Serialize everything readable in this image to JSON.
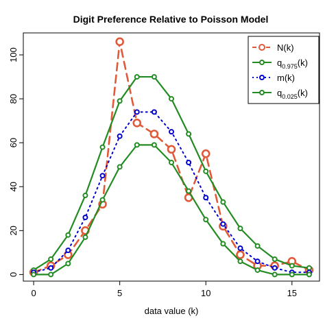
{
  "chart_data": {
    "type": "line",
    "title": "Digit Preference Relative to Poisson Model",
    "xlabel": "data value (k)",
    "ylabel": "",
    "xlim": [
      -0.6,
      16.6
    ],
    "ylim": [
      -3,
      110
    ],
    "xticks": [
      0,
      5,
      10,
      15
    ],
    "yticks": [
      0,
      20,
      40,
      60,
      80,
      100
    ],
    "x": [
      0,
      1,
      2,
      3,
      4,
      5,
      6,
      7,
      8,
      9,
      10,
      11,
      12,
      13,
      14,
      15,
      16
    ],
    "series": [
      {
        "name": "N(k)",
        "name_base": "N(k)",
        "name_sub": "",
        "name_tail": "",
        "color": "#e05a3a",
        "style": "dashed",
        "marker_size": "large",
        "values": [
          1,
          4,
          9,
          20,
          32,
          106,
          69,
          64,
          57,
          35,
          55,
          22,
          9,
          4,
          4,
          6,
          2
        ]
      },
      {
        "name": "q0.975(k)",
        "name_base": "q",
        "name_sub": "0.975",
        "name_tail": "(k)",
        "color": "#228b22",
        "style": "solid",
        "marker_size": "small",
        "values": [
          2,
          7,
          18,
          36,
          58,
          79,
          90,
          90,
          80,
          64,
          47,
          33,
          21,
          13,
          7,
          4,
          3
        ]
      },
      {
        "name": "m(k)",
        "name_base": "m(k)",
        "name_sub": "",
        "name_tail": "",
        "color": "#0000cd",
        "style": "dotted",
        "marker_size": "small",
        "values": [
          1,
          3,
          11,
          26,
          45,
          63,
          74,
          74,
          65,
          51,
          35,
          23,
          12,
          6,
          3,
          1,
          1
        ]
      },
      {
        "name": "q0.025(k)",
        "name_base": "q",
        "name_sub": "0.025",
        "name_tail": "(k)",
        "color": "#228b22",
        "style": "solid",
        "marker_size": "small",
        "values": [
          0,
          0,
          5,
          17,
          34,
          49,
          59,
          59,
          51,
          38,
          25,
          14,
          6,
          2,
          0,
          0,
          0
        ]
      }
    ],
    "legend_position": "top-right",
    "grid": false
  }
}
